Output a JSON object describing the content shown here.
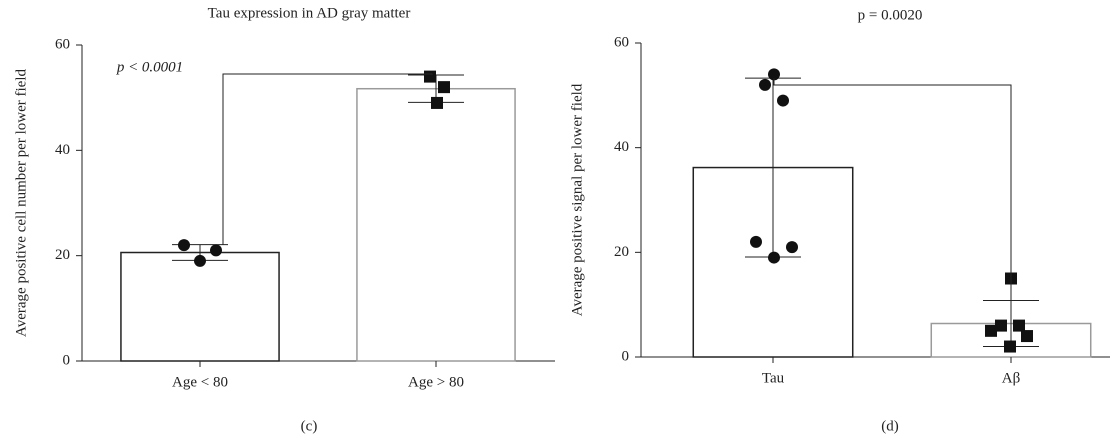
{
  "chart_data": [
    {
      "type": "bar",
      "title": "Tau expression in AD gray matter",
      "ylabel": "Average positive cell number per lower field",
      "annotation": "p < 0.0001",
      "panel_label": "(c)",
      "categories": [
        "Age < 80",
        "Age > 80"
      ],
      "values": [
        20.6,
        51.7
      ],
      "errors": [
        1.5,
        2.6
      ],
      "points": [
        [
          22,
          19,
          21
        ],
        [
          54,
          52,
          49
        ]
      ],
      "markers": [
        "circle",
        "square"
      ],
      "edgecolors": [
        "#222222",
        "#9a9a9a"
      ],
      "point_color": "#111111",
      "ylim": [
        0,
        60
      ],
      "yticks": [
        0,
        20,
        40,
        60
      ]
    },
    {
      "type": "bar",
      "title": "p = 0.0020",
      "ylabel": "Average positive signal per lower field",
      "panel_label": "(d)",
      "categories": [
        "Tau",
        "Aβ"
      ],
      "values": [
        36.2,
        6.4
      ],
      "errors": [
        17.1,
        4.4
      ],
      "points": [
        [
          54,
          52,
          49,
          22,
          21,
          19
        ],
        [
          15,
          6,
          5,
          6,
          4,
          2
        ]
      ],
      "markers": [
        "circle",
        "square"
      ],
      "edgecolors": [
        "#222222",
        "#9a9a9a"
      ],
      "point_color": "#111111",
      "ylim": [
        0,
        60
      ],
      "yticks": [
        0,
        20,
        40,
        60
      ]
    }
  ]
}
